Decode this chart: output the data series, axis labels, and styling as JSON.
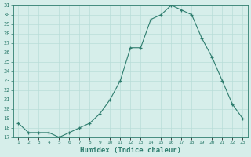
{
  "x": [
    1,
    2,
    3,
    4,
    5,
    6,
    7,
    8,
    9,
    10,
    11,
    12,
    13,
    14,
    15,
    16,
    17,
    18,
    19,
    20,
    21,
    22,
    23
  ],
  "y": [
    18.5,
    17.5,
    17.5,
    17.5,
    17.0,
    17.5,
    18.0,
    18.5,
    19.5,
    21.0,
    23.0,
    26.5,
    26.5,
    29.5,
    30.0,
    31.0,
    30.5,
    30.0,
    27.5,
    25.5,
    23.0,
    20.5,
    19.0
  ],
  "xlabel": "Humidex (Indice chaleur)",
  "ylim": [
    17,
    31
  ],
  "yticks": [
    17,
    18,
    19,
    20,
    21,
    22,
    23,
    24,
    25,
    26,
    27,
    28,
    29,
    30,
    31
  ],
  "xtick_labels": [
    "1",
    "2",
    "3",
    "4",
    "5",
    "6",
    "7",
    "8",
    "9",
    "10",
    "11",
    "12",
    "13",
    "14",
    "15",
    "16",
    "17",
    "18",
    "19",
    "20",
    "21",
    "22",
    "23"
  ],
  "line_color": "#2e7d6e",
  "bg_color": "#d6eeea",
  "grid_color": "#b8ddd8"
}
